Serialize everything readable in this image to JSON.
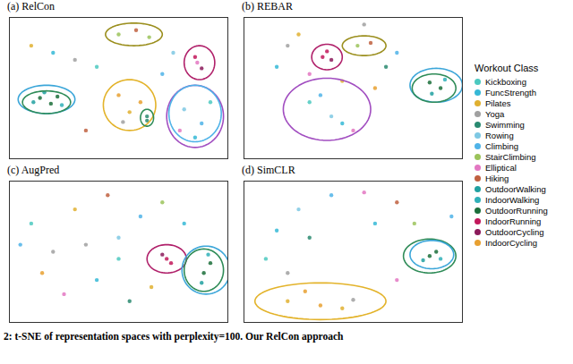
{
  "chart_data": [
    {
      "type": "scatter",
      "title": "(a) RelCon",
      "xlim": [
        0,
        100
      ],
      "ylim": [
        0,
        100
      ],
      "tick_labels": false,
      "points": [
        [
          14,
          43,
          "OutdoorRunning"
        ],
        [
          19,
          39,
          "OutdoorRunning"
        ],
        [
          22,
          44,
          "OutdoorRunning"
        ],
        [
          11,
          40,
          "OutdoorWalking"
        ],
        [
          16,
          47,
          "OutdoorWalking"
        ],
        [
          24,
          38,
          "IndoorWalking"
        ],
        [
          50,
          88,
          "StairClimbing"
        ],
        [
          58,
          91,
          "Hiking"
        ],
        [
          64,
          86,
          "StairClimbing"
        ],
        [
          85,
          72,
          "IndoorRunning"
        ],
        [
          88,
          64,
          "OutdoorCycling"
        ],
        [
          86,
          68,
          "Elliptical"
        ],
        [
          50,
          45,
          "IndoorCycling"
        ],
        [
          55,
          33,
          "Pilates"
        ],
        [
          60,
          40,
          "IndoorCycling"
        ],
        [
          52,
          26,
          "Yoga"
        ],
        [
          63,
          30,
          "Swimming"
        ],
        [
          63,
          27,
          "Swimming"
        ],
        [
          80,
          35,
          "Rowing"
        ],
        [
          88,
          25,
          "Climbing"
        ],
        [
          85,
          15,
          "FuncStrength"
        ],
        [
          92,
          40,
          "Kickboxing"
        ],
        [
          78,
          20,
          "Elliptical"
        ],
        [
          30,
          70,
          "Yoga"
        ],
        [
          20,
          75,
          "FuncStrength"
        ],
        [
          40,
          65,
          "Kickboxing"
        ],
        [
          35,
          20,
          "Hiking"
        ],
        [
          70,
          60,
          "Climbing"
        ],
        [
          10,
          80,
          "Pilates"
        ],
        [
          75,
          75,
          "Rowing"
        ]
      ],
      "ellipses": [
        {
          "cx": 17,
          "cy": 42,
          "rx": 13,
          "ry": 10,
          "color": "#3ba6d9"
        },
        {
          "cx": 17,
          "cy": 40,
          "rx": 11,
          "ry": 8,
          "color": "#2e8b57"
        },
        {
          "cx": 57,
          "cy": 88,
          "rx": 13,
          "ry": 8,
          "color": "#9b8f1e"
        },
        {
          "cx": 87,
          "cy": 68,
          "rx": 7,
          "ry": 12,
          "color": "#b0206a"
        },
        {
          "cx": 55,
          "cy": 38,
          "rx": 12,
          "ry": 18,
          "color": "#e3b32a"
        },
        {
          "cx": 63,
          "cy": 29,
          "rx": 3,
          "ry": 6,
          "color": "#2e8b57"
        },
        {
          "cx": 85,
          "cy": 30,
          "rx": 13,
          "ry": 22,
          "color": "#a14dc0"
        },
        {
          "cx": 85,
          "cy": 32,
          "rx": 12,
          "ry": 20,
          "color": "#4fb3e8"
        }
      ]
    },
    {
      "type": "scatter",
      "title": "(b) REBAR",
      "xlim": [
        0,
        100
      ],
      "ylim": [
        0,
        100
      ],
      "tick_labels": false,
      "points": [
        [
          36,
          72,
          "IndoorRunning"
        ],
        [
          40,
          70,
          "OutdoorCycling"
        ],
        [
          38,
          76,
          "IndoorRunning"
        ],
        [
          52,
          80,
          "StairClimbing"
        ],
        [
          58,
          82,
          "Hiking"
        ],
        [
          85,
          54,
          "OutdoorRunning"
        ],
        [
          90,
          50,
          "OutdoorRunning"
        ],
        [
          86,
          46,
          "OutdoorWalking"
        ],
        [
          92,
          56,
          "IndoorWalking"
        ],
        [
          30,
          40,
          "Kickboxing"
        ],
        [
          40,
          30,
          "Rowing"
        ],
        [
          45,
          25,
          "FuncStrength"
        ],
        [
          35,
          45,
          "Climbing"
        ],
        [
          50,
          20,
          "Elliptical"
        ],
        [
          20,
          80,
          "Yoga"
        ],
        [
          25,
          88,
          "Pilates"
        ],
        [
          65,
          65,
          "Swimming"
        ],
        [
          60,
          50,
          "IndoorCycling"
        ],
        [
          15,
          65,
          "FuncStrength"
        ],
        [
          70,
          75,
          "Climbing"
        ],
        [
          45,
          55,
          "Pilates"
        ],
        [
          30,
          60,
          "Elliptical"
        ],
        [
          55,
          95,
          "Yoga"
        ]
      ],
      "ellipses": [
        {
          "cx": 38,
          "cy": 72,
          "rx": 7,
          "ry": 9,
          "color": "#b0206a"
        },
        {
          "cx": 55,
          "cy": 80,
          "rx": 10,
          "ry": 7,
          "color": "#9b8f1e"
        },
        {
          "cx": 88,
          "cy": 52,
          "rx": 12,
          "ry": 12,
          "color": "#3ba6d9"
        },
        {
          "cx": 87,
          "cy": 50,
          "rx": 10,
          "ry": 10,
          "color": "#2e8b57"
        },
        {
          "cx": 38,
          "cy": 35,
          "rx": 20,
          "ry": 22,
          "color": "#a14dc0"
        }
      ]
    },
    {
      "type": "scatter",
      "title": "(c) AugPred",
      "xlim": [
        0,
        100
      ],
      "ylim": [
        0,
        100
      ],
      "tick_labels": false,
      "points": [
        [
          72,
          45,
          "IndoorRunning"
        ],
        [
          70,
          48,
          "OutdoorCycling"
        ],
        [
          74,
          42,
          "IndoorRunning"
        ],
        [
          89,
          35,
          "OutdoorRunning"
        ],
        [
          92,
          42,
          "OutdoorRunning"
        ],
        [
          88,
          28,
          "OutdoorWalking"
        ],
        [
          91,
          48,
          "IndoorWalking"
        ],
        [
          10,
          70,
          "Kickboxing"
        ],
        [
          20,
          50,
          "Yoga"
        ],
        [
          30,
          80,
          "Pilates"
        ],
        [
          40,
          30,
          "FuncStrength"
        ],
        [
          50,
          60,
          "Rowing"
        ],
        [
          60,
          75,
          "Climbing"
        ],
        [
          25,
          20,
          "Elliptical"
        ],
        [
          45,
          90,
          "Hiking"
        ],
        [
          55,
          15,
          "Swimming"
        ],
        [
          70,
          85,
          "StairClimbing"
        ],
        [
          15,
          35,
          "IndoorCycling"
        ],
        [
          35,
          55,
          "Yoga"
        ],
        [
          65,
          25,
          "Pilates"
        ],
        [
          80,
          70,
          "FuncStrength"
        ],
        [
          5,
          55,
          "Climbing"
        ],
        [
          50,
          45,
          "Kickboxing"
        ]
      ],
      "ellipses": [
        {
          "cx": 72,
          "cy": 45,
          "rx": 9,
          "ry": 10,
          "color": "#b0206a"
        },
        {
          "cx": 90,
          "cy": 37,
          "rx": 11,
          "ry": 17,
          "color": "#3ba6d9"
        },
        {
          "cx": 89,
          "cy": 37,
          "rx": 9,
          "ry": 15,
          "color": "#2e8b57"
        }
      ]
    },
    {
      "type": "scatter",
      "title": "(d) SimCLR",
      "xlim": [
        0,
        100
      ],
      "ylim": [
        0,
        100
      ],
      "tick_labels": false,
      "points": [
        [
          20,
          15,
          "Pilates"
        ],
        [
          35,
          12,
          "IndoorCycling"
        ],
        [
          50,
          16,
          "Yoga"
        ],
        [
          28,
          22,
          "IndoorCycling"
        ],
        [
          45,
          10,
          "Pilates"
        ],
        [
          85,
          47,
          "OutdoorRunning"
        ],
        [
          88,
          50,
          "OutdoorRunning"
        ],
        [
          82,
          44,
          "OutdoorWalking"
        ],
        [
          90,
          45,
          "IndoorWalking"
        ],
        [
          10,
          45,
          "Kickboxing"
        ],
        [
          15,
          65,
          "FuncStrength"
        ],
        [
          25,
          80,
          "Rowing"
        ],
        [
          40,
          90,
          "Climbing"
        ],
        [
          55,
          92,
          "Elliptical"
        ],
        [
          70,
          85,
          "Hiking"
        ],
        [
          78,
          70,
          "StairClimbing"
        ],
        [
          30,
          60,
          "Swimming"
        ],
        [
          60,
          70,
          "FuncStrength"
        ],
        [
          20,
          35,
          "Yoga"
        ],
        [
          70,
          30,
          "Elliptical"
        ],
        [
          95,
          75,
          "Climbing"
        ]
      ],
      "ellipses": [
        {
          "cx": 35,
          "cy": 15,
          "rx": 30,
          "ry": 13,
          "color": "#e3b32a"
        },
        {
          "cx": 85,
          "cy": 47,
          "rx": 12,
          "ry": 12,
          "color": "#2e8b57"
        },
        {
          "cx": 86,
          "cy": 48,
          "rx": 10,
          "ry": 10,
          "color": "#3ba6d9"
        }
      ]
    }
  ],
  "legend_title": "Workout Class",
  "classes": [
    {
      "name": "Kickboxing",
      "color": "#4cc9c0"
    },
    {
      "name": "FuncStrength",
      "color": "#35b8d6"
    },
    {
      "name": "Pilates",
      "color": "#e0b030"
    },
    {
      "name": "Yoga",
      "color": "#a0a0a0"
    },
    {
      "name": "Swimming",
      "color": "#2a8a70"
    },
    {
      "name": "Rowing",
      "color": "#7ec8e3"
    },
    {
      "name": "Climbing",
      "color": "#4fb3e8"
    },
    {
      "name": "StairClimbing",
      "color": "#9bc35a"
    },
    {
      "name": "Elliptical",
      "color": "#e377c2"
    },
    {
      "name": "Hiking",
      "color": "#c06040"
    },
    {
      "name": "OutdoorWalking",
      "color": "#20a0a0"
    },
    {
      "name": "IndoorWalking",
      "color": "#30b0b8"
    },
    {
      "name": "OutdoorRunning",
      "color": "#1b6e3a"
    },
    {
      "name": "IndoorRunning",
      "color": "#c2185b"
    },
    {
      "name": "OutdoorCycling",
      "color": "#8b1a5a"
    },
    {
      "name": "IndoorCycling",
      "color": "#e8a030"
    }
  ],
  "caption": "2: t-SNE of representation spaces with perplexity=100. Our RelCon approach"
}
